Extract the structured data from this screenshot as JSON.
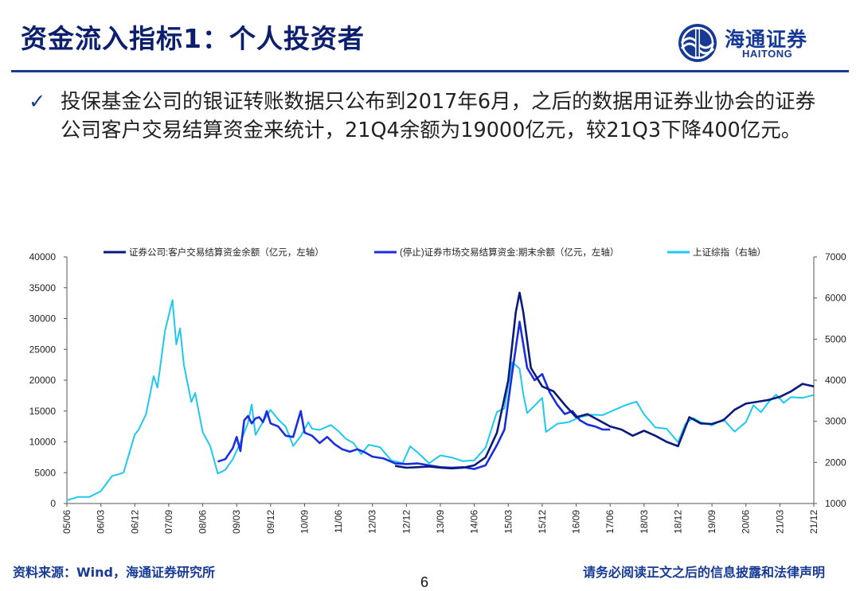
{
  "header": {
    "title": "资金流入指标1：个人投资者",
    "logo_cn": "海通证券",
    "logo_en": "HAITONG"
  },
  "bullet": {
    "mark": "✓",
    "text": "投保基金公司的银证转账数据只公布到2017年6月，之后的数据用证券业协会的证券公司客户交易结算资金来统计，21Q4余额为19000亿元，较21Q3下降400亿元。"
  },
  "footer": {
    "source": "资料来源：Wind，海通证券研究所",
    "disclaimer": "请务必阅读正文之后的信息披露和法律声明",
    "page": "6"
  },
  "colors": {
    "title": "#0b1f6e",
    "accent": "#1a3a8c",
    "series1": "#0a1a7a",
    "series2": "#1a2ee0",
    "series3": "#1ec8f0"
  },
  "chart_data": {
    "type": "line",
    "x_tick_labels": [
      "05/06",
      "06/03",
      "06/12",
      "07/09",
      "08/06",
      "09/03",
      "09/12",
      "10/09",
      "11/06",
      "12/03",
      "12/12",
      "13/09",
      "14/06",
      "15/03",
      "15/12",
      "16/09",
      "17/06",
      "18/03",
      "18/12",
      "19/09",
      "20/06",
      "21/03",
      "21/12"
    ],
    "left_axis": {
      "ylim": [
        0,
        40000
      ],
      "ticks": [
        0,
        5000,
        10000,
        15000,
        20000,
        25000,
        30000,
        35000,
        40000
      ]
    },
    "right_axis": {
      "ylim": [
        1000,
        7000
      ],
      "ticks": [
        1000,
        2000,
        3000,
        4000,
        5000,
        6000,
        7000
      ]
    },
    "series": [
      {
        "name": "证券公司:客户交易结算资金余额（亿元，左轴）",
        "axis": "left",
        "color_key": "series1",
        "points": [
          [
            "2012-09",
            6100
          ],
          [
            "2012-12",
            5800
          ],
          [
            "2013-03",
            5900
          ],
          [
            "2013-06",
            6000
          ],
          [
            "2013-09",
            5800
          ],
          [
            "2013-12",
            5700
          ],
          [
            "2014-03",
            5800
          ],
          [
            "2014-06",
            6200
          ],
          [
            "2014-09",
            7500
          ],
          [
            "2014-12",
            11500
          ],
          [
            "2015-03",
            20000
          ],
          [
            "2015-05",
            31000
          ],
          [
            "2015-06",
            34200
          ],
          [
            "2015-07",
            31000
          ],
          [
            "2015-09",
            22000
          ],
          [
            "2015-12",
            19000
          ],
          [
            "2016-03",
            18200
          ],
          [
            "2016-06",
            16000
          ],
          [
            "2016-09",
            14000
          ],
          [
            "2016-12",
            14500
          ],
          [
            "2017-03",
            13500
          ],
          [
            "2017-06",
            12500
          ],
          [
            "2017-09",
            12000
          ],
          [
            "2017-12",
            11000
          ],
          [
            "2018-03",
            11800
          ],
          [
            "2018-06",
            11000
          ],
          [
            "2018-09",
            10000
          ],
          [
            "2018-12",
            9300
          ],
          [
            "2019-03",
            14000
          ],
          [
            "2019-06",
            13000
          ],
          [
            "2019-09",
            12900
          ],
          [
            "2019-12",
            13500
          ],
          [
            "2020-03",
            15200
          ],
          [
            "2020-06",
            16200
          ],
          [
            "2020-09",
            16500
          ],
          [
            "2020-12",
            16800
          ],
          [
            "2021-03",
            17300
          ],
          [
            "2021-06",
            18200
          ],
          [
            "2021-09",
            19400
          ],
          [
            "2021-12",
            19000
          ]
        ]
      },
      {
        "name": "(停止)证券市场交易结算资金:期末余额（亿元，左轴）",
        "axis": "left",
        "color_key": "series2",
        "points": [
          [
            "2008-10",
            6800
          ],
          [
            "2008-12",
            7200
          ],
          [
            "2009-02",
            9000
          ],
          [
            "2009-03",
            10800
          ],
          [
            "2009-04",
            8500
          ],
          [
            "2009-05",
            13500
          ],
          [
            "2009-06",
            14200
          ],
          [
            "2009-07",
            13000
          ],
          [
            "2009-08",
            13800
          ],
          [
            "2009-09",
            14000
          ],
          [
            "2009-10",
            13200
          ],
          [
            "2009-11",
            15000
          ],
          [
            "2009-12",
            13000
          ],
          [
            "2010-02",
            12500
          ],
          [
            "2010-04",
            11000
          ],
          [
            "2010-06",
            10800
          ],
          [
            "2010-08",
            15000
          ],
          [
            "2010-09",
            11500
          ],
          [
            "2010-11",
            11000
          ],
          [
            "2011-01",
            9800
          ],
          [
            "2011-03",
            10800
          ],
          [
            "2011-05",
            9600
          ],
          [
            "2011-07",
            8800
          ],
          [
            "2011-09",
            8400
          ],
          [
            "2011-11",
            8800
          ],
          [
            "2012-01",
            8300
          ],
          [
            "2012-03",
            7600
          ],
          [
            "2012-06",
            7300
          ],
          [
            "2012-09",
            6500
          ],
          [
            "2012-12",
            6400
          ],
          [
            "2013-03",
            6500
          ],
          [
            "2013-06",
            6200
          ],
          [
            "2013-09",
            5900
          ],
          [
            "2013-12",
            5800
          ],
          [
            "2014-03",
            5900
          ],
          [
            "2014-06",
            5600
          ],
          [
            "2014-09",
            6200
          ],
          [
            "2014-12",
            9500
          ],
          [
            "2015-02",
            12000
          ],
          [
            "2015-04",
            21000
          ],
          [
            "2015-06",
            29500
          ],
          [
            "2015-08",
            22000
          ],
          [
            "2015-10",
            20000
          ],
          [
            "2015-12",
            21000
          ],
          [
            "2016-02",
            18000
          ],
          [
            "2016-04",
            16000
          ],
          [
            "2016-06",
            14500
          ],
          [
            "2016-08",
            15000
          ],
          [
            "2016-10",
            13500
          ],
          [
            "2016-12",
            12800
          ],
          [
            "2017-02",
            12500
          ],
          [
            "2017-04",
            12000
          ],
          [
            "2017-06",
            12000
          ]
        ]
      },
      {
        "name": "上证综指（右轴）",
        "axis": "right",
        "color_key": "series3",
        "points": [
          [
            "2005-06",
            1080
          ],
          [
            "2005-09",
            1160
          ],
          [
            "2005-12",
            1160
          ],
          [
            "2006-03",
            1300
          ],
          [
            "2006-06",
            1670
          ],
          [
            "2006-09",
            1750
          ],
          [
            "2006-12",
            2680
          ],
          [
            "2007-01",
            2790
          ],
          [
            "2007-03",
            3180
          ],
          [
            "2007-05",
            4100
          ],
          [
            "2007-06",
            3820
          ],
          [
            "2007-08",
            5200
          ],
          [
            "2007-10",
            5950
          ],
          [
            "2007-11",
            4870
          ],
          [
            "2007-12",
            5260
          ],
          [
            "2008-01",
            4380
          ],
          [
            "2008-03",
            3470
          ],
          [
            "2008-04",
            3690
          ],
          [
            "2008-06",
            2740
          ],
          [
            "2008-08",
            2400
          ],
          [
            "2008-10",
            1730
          ],
          [
            "2008-12",
            1820
          ],
          [
            "2009-02",
            2080
          ],
          [
            "2009-04",
            2480
          ],
          [
            "2009-06",
            2960
          ],
          [
            "2009-07",
            3410
          ],
          [
            "2009-08",
            2670
          ],
          [
            "2009-10",
            2990
          ],
          [
            "2009-12",
            3280
          ],
          [
            "2010-02",
            3050
          ],
          [
            "2010-04",
            2870
          ],
          [
            "2010-06",
            2400
          ],
          [
            "2010-08",
            2640
          ],
          [
            "2010-10",
            2980
          ],
          [
            "2010-11",
            2820
          ],
          [
            "2011-01",
            2790
          ],
          [
            "2011-04",
            2910
          ],
          [
            "2011-06",
            2760
          ],
          [
            "2011-08",
            2570
          ],
          [
            "2011-10",
            2470
          ],
          [
            "2011-12",
            2200
          ],
          [
            "2012-02",
            2430
          ],
          [
            "2012-05",
            2370
          ],
          [
            "2012-08",
            2050
          ],
          [
            "2012-11",
            1980
          ],
          [
            "2013-01",
            2390
          ],
          [
            "2013-03",
            2240
          ],
          [
            "2013-06",
            1980
          ],
          [
            "2013-09",
            2170
          ],
          [
            "2013-12",
            2120
          ],
          [
            "2014-03",
            2030
          ],
          [
            "2014-06",
            2050
          ],
          [
            "2014-09",
            2360
          ],
          [
            "2014-12",
            3230
          ],
          [
            "2015-02",
            3310
          ],
          [
            "2015-04",
            4440
          ],
          [
            "2015-06",
            4280
          ],
          [
            "2015-07",
            3660
          ],
          [
            "2015-08",
            3200
          ],
          [
            "2015-10",
            3380
          ],
          [
            "2015-12",
            3570
          ],
          [
            "2016-01",
            2740
          ],
          [
            "2016-04",
            2940
          ],
          [
            "2016-07",
            2980
          ],
          [
            "2016-10",
            3100
          ],
          [
            "2017-01",
            3160
          ],
          [
            "2017-04",
            3150
          ],
          [
            "2017-07",
            3270
          ],
          [
            "2017-10",
            3390
          ],
          [
            "2018-01",
            3480
          ],
          [
            "2018-03",
            3170
          ],
          [
            "2018-06",
            2850
          ],
          [
            "2018-09",
            2820
          ],
          [
            "2018-12",
            2490
          ],
          [
            "2019-02",
            2940
          ],
          [
            "2019-04",
            3080
          ],
          [
            "2019-06",
            2980
          ],
          [
            "2019-09",
            2900
          ],
          [
            "2019-12",
            3050
          ],
          [
            "2020-03",
            2750
          ],
          [
            "2020-06",
            2980
          ],
          [
            "2020-08",
            3390
          ],
          [
            "2020-10",
            3220
          ],
          [
            "2020-12",
            3470
          ],
          [
            "2021-02",
            3650
          ],
          [
            "2021-04",
            3450
          ],
          [
            "2021-06",
            3590
          ],
          [
            "2021-09",
            3570
          ],
          [
            "2021-12",
            3640
          ]
        ]
      }
    ]
  }
}
